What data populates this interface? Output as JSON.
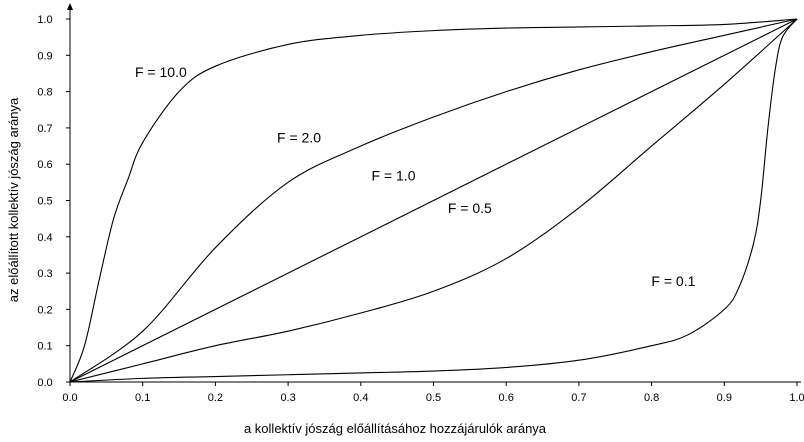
{
  "chart_data": {
    "type": "line",
    "title": "",
    "xlabel": "a kollektív jószág előállításához hozzájárulók aránya",
    "ylabel": "az előállított kollektív jószág aránya",
    "xlim": [
      0,
      1
    ],
    "ylim": [
      0,
      1
    ],
    "grid": false,
    "xticks": [
      "0.0",
      "0.1",
      "0.2",
      "0.3",
      "0.4",
      "0.5",
      "0.6",
      "0.7",
      "0.8",
      "0.9",
      "1.0"
    ],
    "yticks": [
      "0.0",
      "0.1",
      "0.2",
      "0.3",
      "0.4",
      "0.5",
      "0.6",
      "0.7",
      "0.8",
      "0.9",
      "1.0"
    ],
    "series": [
      {
        "name": "F = 10.0",
        "x": [
          0,
          0.02,
          0.04,
          0.06,
          0.08,
          0.1,
          0.15,
          0.2,
          0.3,
          0.4,
          0.5,
          0.6,
          0.7,
          0.8,
          0.9,
          1.0
        ],
        "y": [
          0,
          0.1,
          0.28,
          0.45,
          0.56,
          0.66,
          0.8,
          0.87,
          0.93,
          0.955,
          0.968,
          0.975,
          0.978,
          0.981,
          0.985,
          1.0
        ]
      },
      {
        "name": "F = 2.0",
        "x": [
          0,
          0.1,
          0.2,
          0.3,
          0.4,
          0.5,
          0.6,
          0.7,
          0.8,
          0.9,
          1.0
        ],
        "y": [
          0,
          0.14,
          0.37,
          0.55,
          0.65,
          0.73,
          0.8,
          0.86,
          0.91,
          0.955,
          1.0
        ]
      },
      {
        "name": "F = 1.0",
        "x": [
          0,
          1.0
        ],
        "y": [
          0,
          1.0
        ]
      },
      {
        "name": "F = 0.5",
        "x": [
          0,
          0.1,
          0.2,
          0.3,
          0.4,
          0.5,
          0.6,
          0.7,
          0.8,
          0.9,
          1.0
        ],
        "y": [
          0,
          0.05,
          0.1,
          0.14,
          0.19,
          0.25,
          0.34,
          0.48,
          0.65,
          0.82,
          1.0
        ]
      },
      {
        "name": "F = 0.1",
        "x": [
          0,
          0.1,
          0.2,
          0.3,
          0.4,
          0.5,
          0.6,
          0.7,
          0.8,
          0.85,
          0.9,
          0.92,
          0.94,
          0.95,
          0.96,
          0.97,
          0.98,
          1.0
        ],
        "y": [
          0,
          0.01,
          0.015,
          0.02,
          0.025,
          0.03,
          0.04,
          0.06,
          0.1,
          0.13,
          0.2,
          0.26,
          0.38,
          0.5,
          0.7,
          0.86,
          0.95,
          1.0
        ]
      }
    ],
    "labels": [
      {
        "text": "F = 10.0",
        "x": 0.125,
        "y": 0.84
      },
      {
        "text": "F = 2.0",
        "x": 0.315,
        "y": 0.66
      },
      {
        "text": "F = 1.0",
        "x": 0.445,
        "y": 0.555
      },
      {
        "text": "F = 0.5",
        "x": 0.55,
        "y": 0.465
      },
      {
        "text": "F = 0.1",
        "x": 0.83,
        "y": 0.265
      }
    ]
  }
}
